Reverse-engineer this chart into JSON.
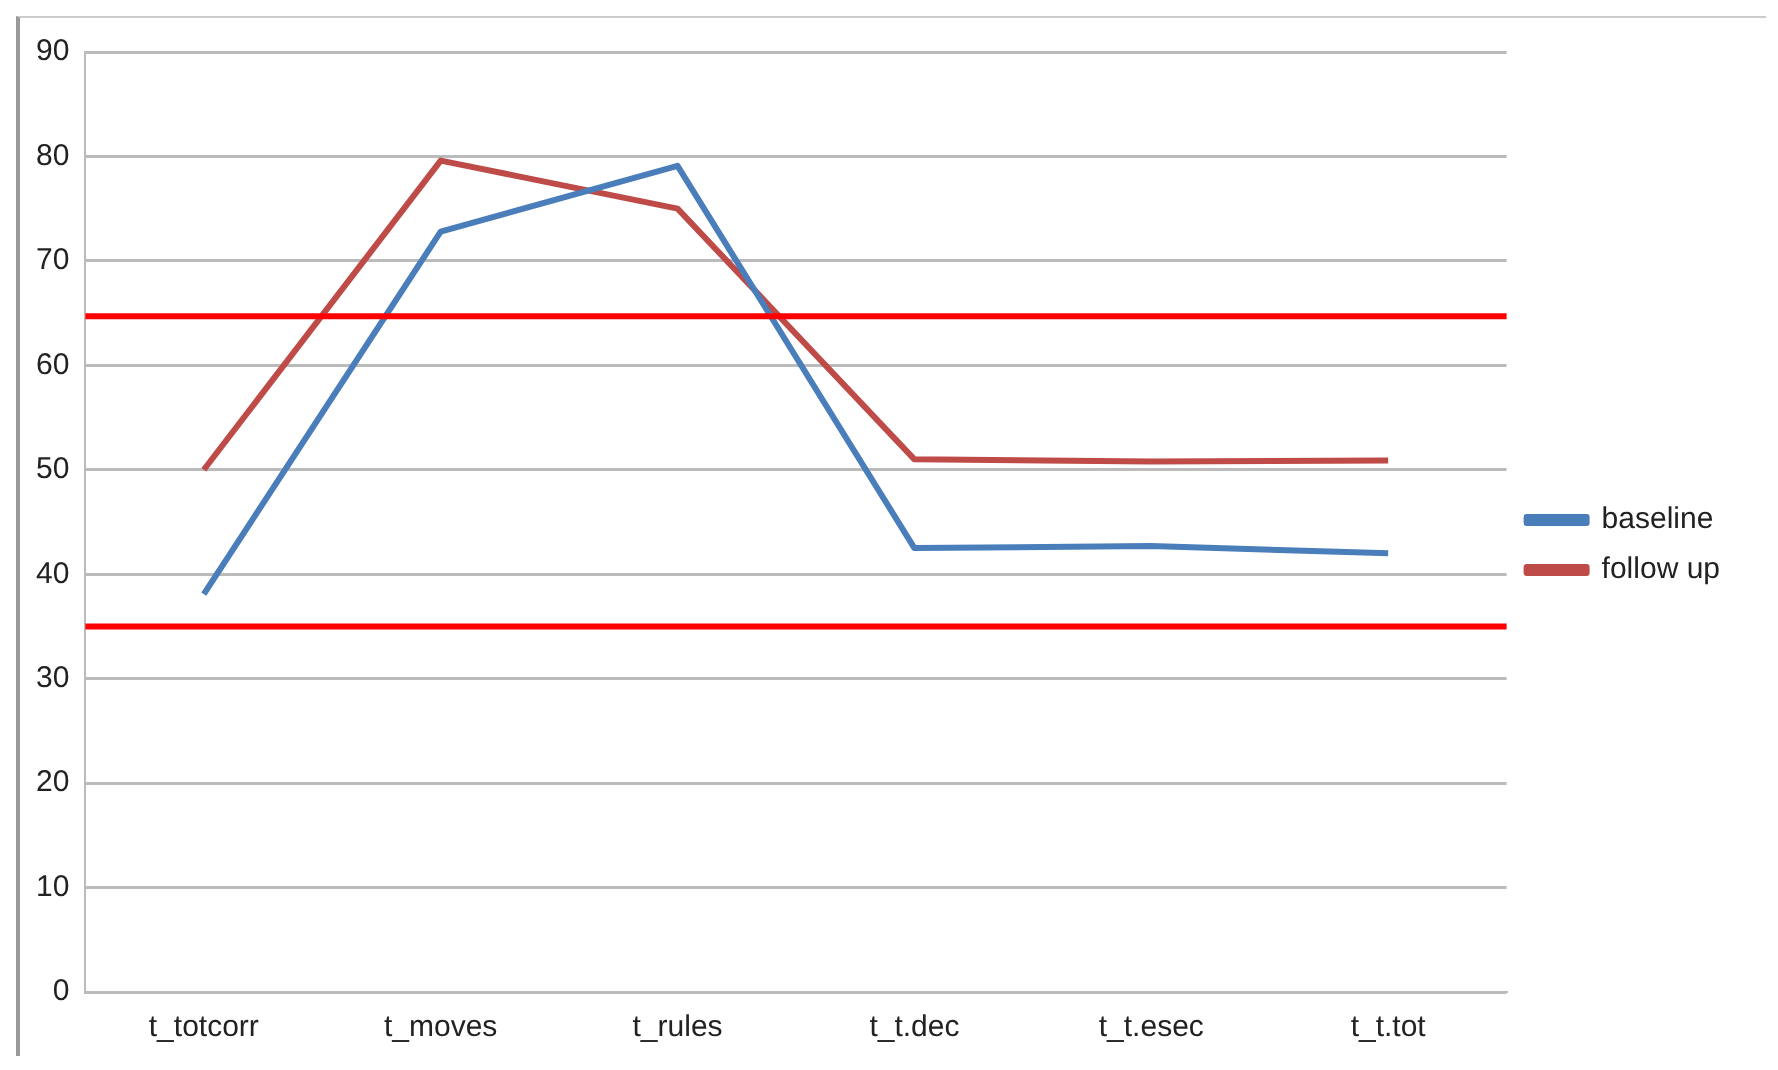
{
  "chart_data": {
    "type": "line",
    "categories": [
      "t_totcorr",
      "t_moves",
      "t_rules",
      "t_t.dec",
      "t_t.esec",
      "t_t.tot"
    ],
    "series": [
      {
        "name": "baseline",
        "color": "#4a7ebb",
        "values": [
          38.1,
          72.8,
          79.1,
          42.5,
          42.7,
          42.0
        ]
      },
      {
        "name": "follow up",
        "color": "#be4b48",
        "values": [
          50.0,
          79.6,
          75.0,
          51.0,
          50.8,
          50.9
        ]
      }
    ],
    "ylim": [
      0,
      90
    ],
    "yticks": [
      0,
      10,
      20,
      30,
      40,
      50,
      60,
      70,
      80,
      90
    ],
    "grid": "y",
    "legend": "right",
    "marker": "none",
    "line_style": "solid",
    "ref_lines": [
      {
        "axis": "y",
        "value": 64.7,
        "color": "#ff0000"
      },
      {
        "axis": "y",
        "value": 35,
        "color": "#ff0000"
      }
    ]
  }
}
